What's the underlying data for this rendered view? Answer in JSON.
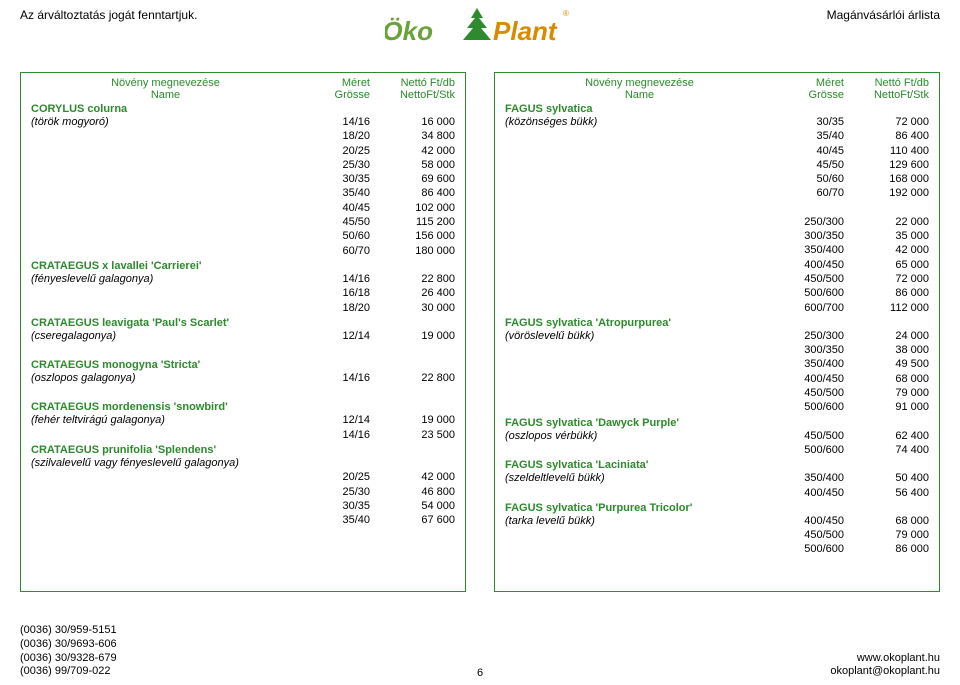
{
  "top": {
    "left": "Az árváltoztatás jogát fenntartjuk.",
    "right": "Magánvásárlói árlista"
  },
  "logo": {
    "oko": "Öko",
    "plant": "Plant",
    "oko_color": "#6aa23a",
    "plant_color": "#d98b00",
    "tree_color": "#2d8a2d"
  },
  "table_header": {
    "line1_c1": "Növény megnevezése",
    "line1_c2": "Méret",
    "line1_c3": "Nettó Ft/db",
    "line2_c1": "Name",
    "line2_c2": "Grösse",
    "line2_c3": "NettoFt/Stk"
  },
  "left_col": [
    {
      "type": "species",
      "text": "CORYLUS colurna"
    },
    {
      "type": "row",
      "c1": "(török mogyoró)",
      "c2": "14/16",
      "c3": "16 000"
    },
    {
      "type": "row",
      "c1": "",
      "c2": "18/20",
      "c3": "34 800"
    },
    {
      "type": "row",
      "c1": "",
      "c2": "20/25",
      "c3": "42 000"
    },
    {
      "type": "row",
      "c1": "",
      "c2": "25/30",
      "c3": "58 000"
    },
    {
      "type": "row",
      "c1": "",
      "c2": "30/35",
      "c3": "69 600"
    },
    {
      "type": "row",
      "c1": "",
      "c2": "35/40",
      "c3": "86 400"
    },
    {
      "type": "row",
      "c1": "",
      "c2": "40/45",
      "c3": "102 000"
    },
    {
      "type": "row",
      "c1": "",
      "c2": "45/50",
      "c3": "115 200"
    },
    {
      "type": "row",
      "c1": "",
      "c2": "50/60",
      "c3": "156 000"
    },
    {
      "type": "row",
      "c1": "",
      "c2": "60/70",
      "c3": "180 000"
    },
    {
      "type": "species",
      "text": "CRATAEGUS x lavallei 'Carrierei'"
    },
    {
      "type": "row",
      "c1": "(fényeslevelű galagonya)",
      "c2": "14/16",
      "c3": "22 800"
    },
    {
      "type": "row",
      "c1": "",
      "c2": "16/18",
      "c3": "26 400"
    },
    {
      "type": "row",
      "c1": "",
      "c2": "18/20",
      "c3": "30 000"
    },
    {
      "type": "species",
      "text": "CRATAEGUS leavigata 'Paul's Scarlet'"
    },
    {
      "type": "row",
      "c1": "(cseregalagonya)",
      "c2": "12/14",
      "c3": "19 000"
    },
    {
      "type": "blank"
    },
    {
      "type": "species",
      "text": "CRATAEGUS monogyna 'Stricta'"
    },
    {
      "type": "row",
      "c1": "(oszlopos galagonya)",
      "c2": "14/16",
      "c3": "22 800"
    },
    {
      "type": "blank"
    },
    {
      "type": "species",
      "text": "CRATAEGUS mordenensis 'snowbird'"
    },
    {
      "type": "row",
      "c1": "(fehér teltvirágú galagonya)",
      "c2": "12/14",
      "c3": "19 000"
    },
    {
      "type": "row",
      "c1": "",
      "c2": "14/16",
      "c3": "23 500"
    },
    {
      "type": "species",
      "text": "CRATAEGUS prunifolia 'Splendens'"
    },
    {
      "type": "row",
      "c1": "(szilvalevelű vagy fényeslevelű galagonya)",
      "c2": "",
      "c3": ""
    },
    {
      "type": "row",
      "c1": "",
      "c2": "20/25",
      "c3": "42 000"
    },
    {
      "type": "row",
      "c1": "",
      "c2": "25/30",
      "c3": "46 800"
    },
    {
      "type": "row",
      "c1": "",
      "c2": "30/35",
      "c3": "54 000"
    },
    {
      "type": "row",
      "c1": "",
      "c2": "35/40",
      "c3": "67 600"
    }
  ],
  "right_col": [
    {
      "type": "species",
      "text": "FAGUS sylvatica"
    },
    {
      "type": "row",
      "c1": "(közönséges bükk)",
      "c2": "30/35",
      "c3": "72 000"
    },
    {
      "type": "row",
      "c1": "",
      "c2": "35/40",
      "c3": "86 400"
    },
    {
      "type": "row",
      "c1": "",
      "c2": "40/45",
      "c3": "110 400"
    },
    {
      "type": "row",
      "c1": "",
      "c2": "45/50",
      "c3": "129 600"
    },
    {
      "type": "row",
      "c1": "",
      "c2": "50/60",
      "c3": "168 000"
    },
    {
      "type": "row",
      "c1": "",
      "c2": "60/70",
      "c3": "192 000"
    },
    {
      "type": "blank"
    },
    {
      "type": "row",
      "c1": "",
      "c2": "250/300",
      "c3": "22 000"
    },
    {
      "type": "row",
      "c1": "",
      "c2": "300/350",
      "c3": "35 000"
    },
    {
      "type": "row",
      "c1": "",
      "c2": "350/400",
      "c3": "42 000"
    },
    {
      "type": "row",
      "c1": "",
      "c2": "400/450",
      "c3": "65 000"
    },
    {
      "type": "row",
      "c1": "",
      "c2": "450/500",
      "c3": "72 000"
    },
    {
      "type": "row",
      "c1": "",
      "c2": "500/600",
      "c3": "86 000"
    },
    {
      "type": "row",
      "c1": "",
      "c2": "600/700",
      "c3": "112 000"
    },
    {
      "type": "species",
      "text": "FAGUS sylvatica 'Atropurpurea'"
    },
    {
      "type": "row",
      "c1": "(vöröslevelű bükk)",
      "c2": "250/300",
      "c3": "24 000"
    },
    {
      "type": "row",
      "c1": "",
      "c2": "300/350",
      "c3": "38 000"
    },
    {
      "type": "row",
      "c1": "",
      "c2": "350/400",
      "c3": "49 500"
    },
    {
      "type": "row",
      "c1": "",
      "c2": "400/450",
      "c3": "68 000"
    },
    {
      "type": "row",
      "c1": "",
      "c2": "450/500",
      "c3": "79 000"
    },
    {
      "type": "row",
      "c1": "",
      "c2": "500/600",
      "c3": "91 000"
    },
    {
      "type": "species",
      "text": "FAGUS sylvatica 'Dawyck Purple'"
    },
    {
      "type": "row",
      "c1": "(oszlopos vérbükk)",
      "c2": "450/500",
      "c3": "62 400"
    },
    {
      "type": "row",
      "c1": "",
      "c2": "500/600",
      "c3": "74 400"
    },
    {
      "type": "species",
      "text": "FAGUS sylvatica 'Laciniata'"
    },
    {
      "type": "row",
      "c1": "(szeldeltlevelű bükk)",
      "c2": "350/400",
      "c3": "50 400"
    },
    {
      "type": "row",
      "c1": "",
      "c2": "400/450",
      "c3": "56 400"
    },
    {
      "type": "species",
      "text": "FAGUS sylvatica 'Purpurea Tricolor'"
    },
    {
      "type": "row",
      "c1": "(tarka levelű bükk)",
      "c2": "400/450",
      "c3": "68 000"
    },
    {
      "type": "row",
      "c1": "",
      "c2": "450/500",
      "c3": "79 000"
    },
    {
      "type": "row",
      "c1": "",
      "c2": "500/600",
      "c3": "86 000"
    }
  ],
  "footer": {
    "phones": [
      "(0036) 30/959-5151",
      "(0036) 30/9693-606",
      "(0036) 30/9328-679",
      "(0036) 99/709-022"
    ],
    "page": "6",
    "web1": "www.okoplant.hu",
    "web2": "okoplant@okoplant.hu"
  },
  "colors": {
    "brand_green": "#2d8a2d",
    "text": "#000000"
  }
}
